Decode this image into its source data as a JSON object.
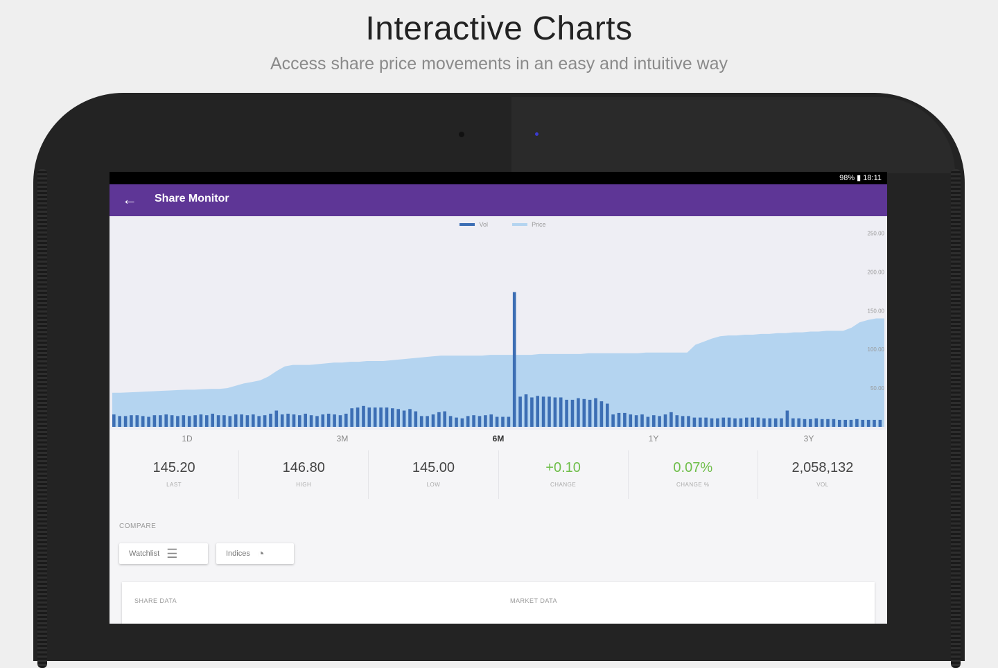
{
  "promo": {
    "title": "Interactive Charts",
    "subtitle": "Access share price movements in an easy and intuitive way"
  },
  "status_bar": {
    "text": "98% ▮ 18:11"
  },
  "app_bar": {
    "back_icon": "arrow-left-icon",
    "title": "Share Monitor"
  },
  "chart_data": {
    "type": "area",
    "legend": [
      "Vol",
      "Price"
    ],
    "series_colors": {
      "Vol": "#3c6eb4",
      "Price": "#b4d4f0"
    },
    "y_ticks": [
      "250.00",
      "200.00",
      "150.00",
      "100.00",
      "50.00"
    ],
    "ylim": [
      0,
      272
    ],
    "price": [
      44,
      44,
      44.5,
      45,
      45.5,
      46,
      46.5,
      47,
      47.5,
      48,
      48,
      48.5,
      49,
      49,
      50,
      53,
      56,
      58,
      60,
      65,
      72,
      78,
      80,
      80,
      80,
      81,
      82,
      83,
      83,
      84,
      84,
      85,
      85,
      85,
      86,
      87,
      88,
      89,
      90,
      91,
      92,
      92,
      92,
      92,
      92,
      92,
      93,
      93,
      93,
      93,
      93,
      93,
      94,
      94,
      94,
      94,
      94,
      94,
      95,
      95,
      95,
      95,
      95,
      95,
      95,
      96,
      96,
      96,
      96,
      96,
      96,
      106,
      110,
      114,
      117,
      118,
      118,
      119,
      119,
      120,
      120,
      121,
      121,
      122,
      122,
      123,
      123,
      124,
      124,
      124,
      128,
      135,
      138,
      140,
      140
    ],
    "volume": [
      16,
      14,
      14,
      15,
      15,
      14,
      13,
      15,
      15,
      16,
      15,
      14,
      15,
      14,
      15,
      16,
      15,
      17,
      15,
      15,
      14,
      16,
      16,
      15,
      16,
      14,
      15,
      17,
      21,
      16,
      17,
      16,
      15,
      17,
      15,
      14,
      16,
      17,
      16,
      15,
      17,
      24,
      25,
      27,
      25,
      25,
      25,
      25,
      24,
      23,
      21,
      23,
      20,
      14,
      14,
      16,
      19,
      20,
      14,
      12,
      11,
      14,
      15,
      14,
      15,
      16,
      13,
      13,
      13,
      174,
      39,
      42,
      38,
      40,
      39,
      39,
      38,
      38,
      35,
      35,
      37,
      36,
      35,
      37,
      33,
      30,
      16,
      18,
      18,
      16,
      15,
      16,
      13,
      15,
      14,
      16,
      19,
      15,
      14,
      14,
      12,
      12,
      12,
      11,
      11,
      12,
      12,
      11,
      11,
      12,
      12,
      12,
      11,
      11,
      11,
      11,
      21,
      11,
      11,
      10,
      10,
      11,
      10,
      10,
      10,
      9,
      9,
      9,
      10,
      9,
      9,
      9,
      9
    ],
    "x_ticks": [
      "1D",
      "3M",
      "6M",
      "1Y",
      "3Y"
    ],
    "selected_range": "6M"
  },
  "stats": [
    {
      "value": "145.20",
      "label": "LAST",
      "positive": false
    },
    {
      "value": "146.80",
      "label": "HIGH",
      "positive": false
    },
    {
      "value": "145.00",
      "label": "LOW",
      "positive": false
    },
    {
      "value": "+0.10",
      "label": "CHANGE",
      "positive": true
    },
    {
      "value": "0.07%",
      "label": "CHANGE %",
      "positive": true
    },
    {
      "value": "2,058,132",
      "label": "VOL",
      "positive": false
    }
  ],
  "compare": {
    "label": "COMPARE",
    "buttons": [
      {
        "label": "Watchlist",
        "icon": "watchlist-icon"
      },
      {
        "label": "Indices",
        "icon": "indices-icon"
      }
    ]
  },
  "data_card": {
    "share_data": "SHARE DATA",
    "market_data": "MARKET DATA"
  }
}
